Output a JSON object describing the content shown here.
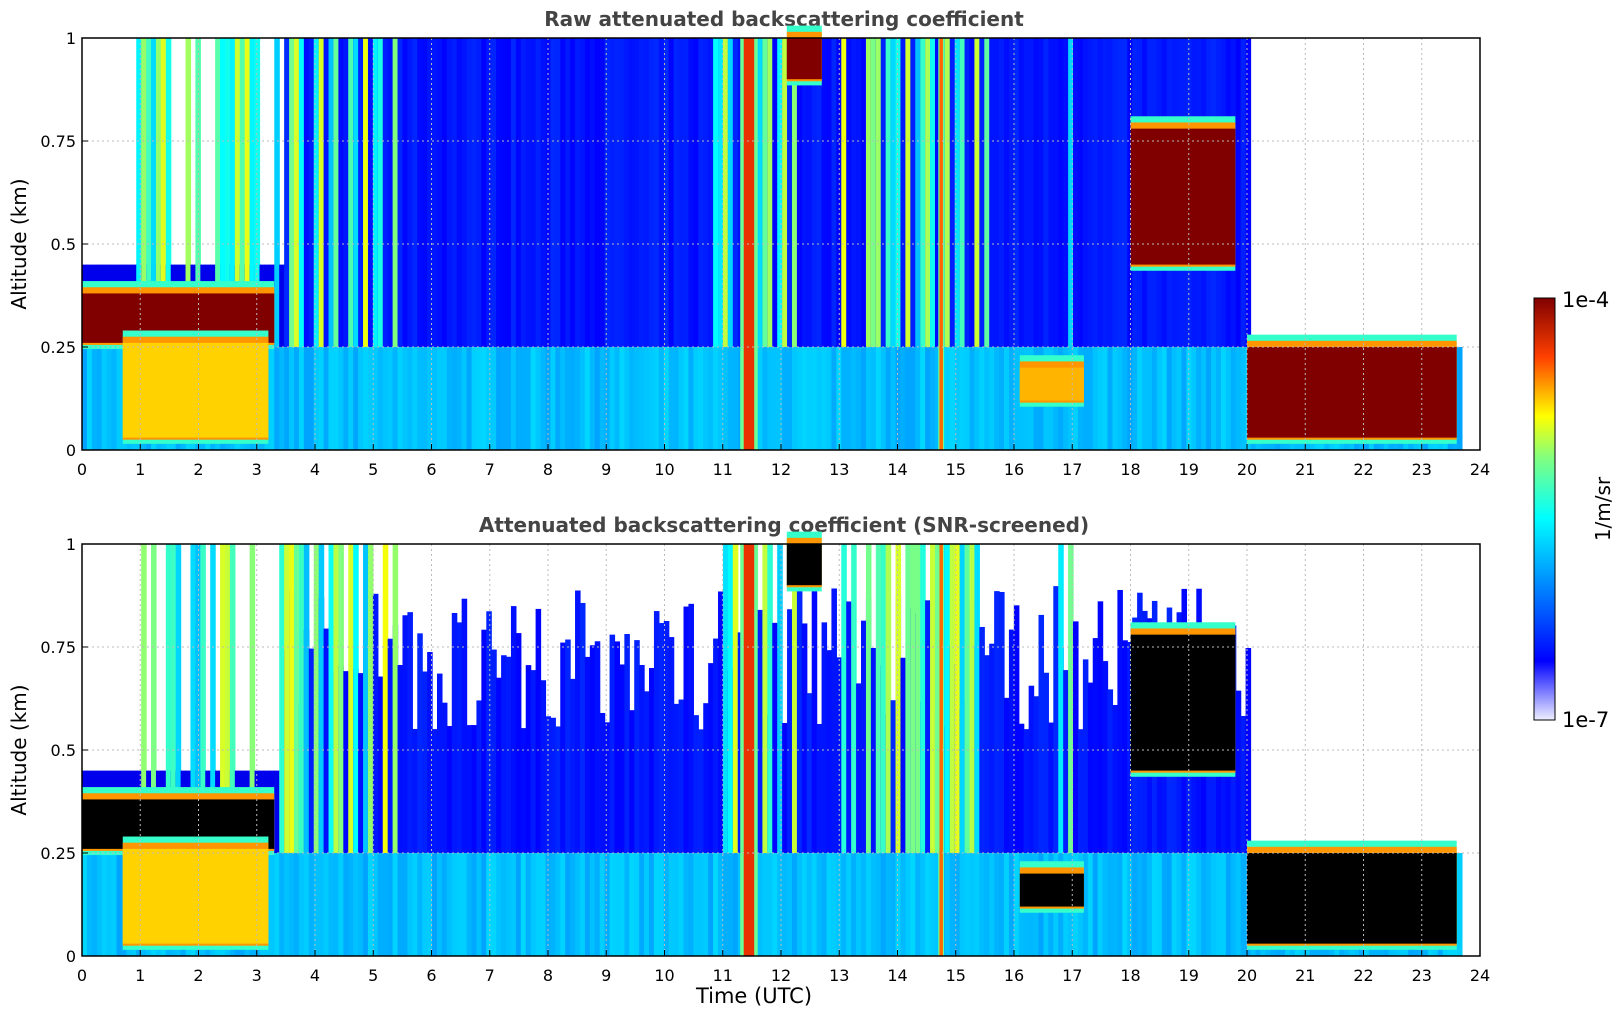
{
  "chart_data": [
    {
      "type": "heatmap",
      "title": "Raw attenuated backscattering coefficient",
      "xlabel": "",
      "ylabel": "Altitude (km)",
      "xlim": [
        0,
        24
      ],
      "ylim": [
        0,
        1
      ],
      "x_ticks": [
        "0",
        "1",
        "2",
        "3",
        "4",
        "5",
        "6",
        "7",
        "8",
        "9",
        "10",
        "11",
        "12",
        "13",
        "14",
        "15",
        "16",
        "17",
        "18",
        "19",
        "20",
        "21",
        "22",
        "23",
        "24"
      ],
      "y_ticks": [
        "0",
        "0.25",
        "0.5",
        "0.75",
        "1"
      ],
      "grid": true,
      "colorscale": "jet",
      "features": [
        {
          "kind": "layer",
          "t_start": 0,
          "t_end": 3.3,
          "alt_bottom": 0.26,
          "alt_top": 0.38,
          "level": 1.0
        },
        {
          "kind": "layer",
          "t_start": 0.7,
          "t_end": 3.2,
          "alt_bottom": 0.03,
          "alt_top": 0.26,
          "level": 0.78
        },
        {
          "kind": "band",
          "t_start": 11.3,
          "t_end": 11.6,
          "alt_bottom": 0,
          "alt_top": 1,
          "level": 0.9
        },
        {
          "kind": "band",
          "t_start": 14.7,
          "t_end": 14.8,
          "alt_bottom": 0,
          "alt_top": 1,
          "level": 0.85
        },
        {
          "kind": "layer",
          "t_start": 12.1,
          "t_end": 12.7,
          "alt_bottom": 0.9,
          "alt_top": 1,
          "level": 1.0
        },
        {
          "kind": "layer",
          "t_start": 16.1,
          "t_end": 17.2,
          "alt_bottom": 0.12,
          "alt_top": 0.2,
          "level": 0.8
        },
        {
          "kind": "layer",
          "t_start": 18.0,
          "t_end": 19.8,
          "alt_bottom": 0.45,
          "alt_top": 0.78,
          "level": 1.0
        },
        {
          "kind": "layer",
          "t_start": 20.0,
          "t_end": 23.6,
          "alt_bottom": 0.03,
          "alt_top": 0.25,
          "level": 1.0
        }
      ]
    },
    {
      "type": "heatmap",
      "title": "Attenuated backscattering coefficient (SNR-screened)",
      "xlabel": "Time (UTC)",
      "ylabel": "Altitude (km)",
      "xlim": [
        0,
        24
      ],
      "ylim": [
        0,
        1
      ],
      "x_ticks": [
        "0",
        "1",
        "2",
        "3",
        "4",
        "5",
        "6",
        "7",
        "8",
        "9",
        "10",
        "11",
        "12",
        "13",
        "14",
        "15",
        "16",
        "17",
        "18",
        "19",
        "20",
        "21",
        "22",
        "23",
        "24"
      ],
      "y_ticks": [
        "0",
        "0.25",
        "0.5",
        "0.75",
        "1"
      ],
      "grid": true,
      "colorscale": "jet",
      "saturated_color": "#000000",
      "features": [
        {
          "kind": "layer",
          "t_start": 0,
          "t_end": 3.3,
          "alt_bottom": 0.26,
          "alt_top": 0.38,
          "level": 1.0
        },
        {
          "kind": "layer",
          "t_start": 0.7,
          "t_end": 3.2,
          "alt_bottom": 0.03,
          "alt_top": 0.26,
          "level": 0.78
        },
        {
          "kind": "band",
          "t_start": 11.3,
          "t_end": 11.6,
          "alt_bottom": 0,
          "alt_top": 1,
          "level": 0.9
        },
        {
          "kind": "band",
          "t_start": 14.7,
          "t_end": 14.8,
          "alt_bottom": 0,
          "alt_top": 1,
          "level": 0.85
        },
        {
          "kind": "layer",
          "t_start": 12.1,
          "t_end": 12.7,
          "alt_bottom": 0.9,
          "alt_top": 1,
          "level": 1.0
        },
        {
          "kind": "layer",
          "t_start": 16.1,
          "t_end": 17.2,
          "alt_bottom": 0.12,
          "alt_top": 0.2,
          "level": 1.0
        },
        {
          "kind": "layer",
          "t_start": 18.0,
          "t_end": 19.8,
          "alt_bottom": 0.45,
          "alt_top": 0.78,
          "level": 1.0
        },
        {
          "kind": "layer",
          "t_start": 20.0,
          "t_end": 23.6,
          "alt_bottom": 0.03,
          "alt_top": 0.25,
          "level": 1.0
        }
      ]
    }
  ],
  "colorbar": {
    "label": "1/m/sr",
    "max_label": "1e-4",
    "min_label": "1e-7",
    "scale": "log"
  }
}
